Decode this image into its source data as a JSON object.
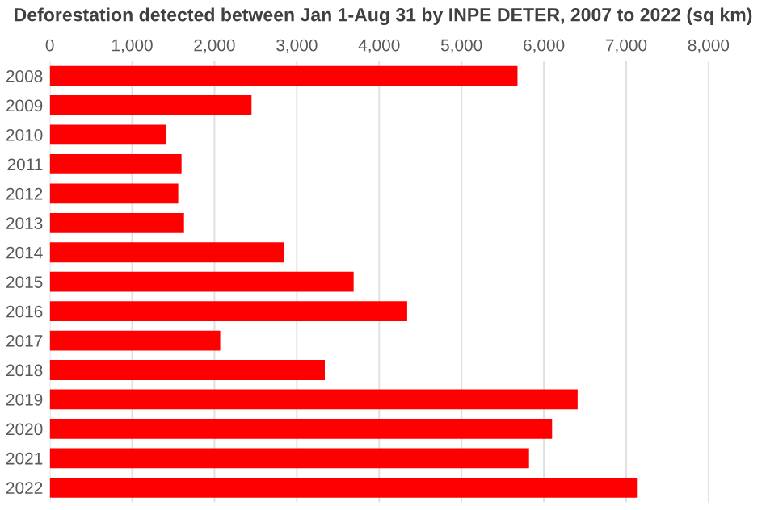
{
  "chart_data": {
    "type": "bar",
    "orientation": "horizontal",
    "title": "Deforestation detected between Jan 1-Aug 31 by INPE DETER, 2007 to 2022 (sq km)",
    "categories": [
      "2008",
      "2009",
      "2010",
      "2011",
      "2012",
      "2013",
      "2014",
      "2015",
      "2016",
      "2017",
      "2018",
      "2019",
      "2020",
      "2021",
      "2022"
    ],
    "values": [
      5680,
      2450,
      1410,
      1600,
      1560,
      1630,
      2840,
      3690,
      4340,
      2070,
      3340,
      6410,
      6100,
      5820,
      7130
    ],
    "color": "#ff0000",
    "xlim": [
      0,
      8000
    ],
    "xticks": [
      {
        "value": 0,
        "label": "0"
      },
      {
        "value": 1000,
        "label": "1,000"
      },
      {
        "value": 2000,
        "label": "2,000"
      },
      {
        "value": 3000,
        "label": "3,000"
      },
      {
        "value": 4000,
        "label": "4,000"
      },
      {
        "value": 5000,
        "label": "5,000"
      },
      {
        "value": 6000,
        "label": "6,000"
      },
      {
        "value": 7000,
        "label": "7,000"
      },
      {
        "value": 8000,
        "label": "8,000"
      }
    ],
    "grid": "x"
  }
}
